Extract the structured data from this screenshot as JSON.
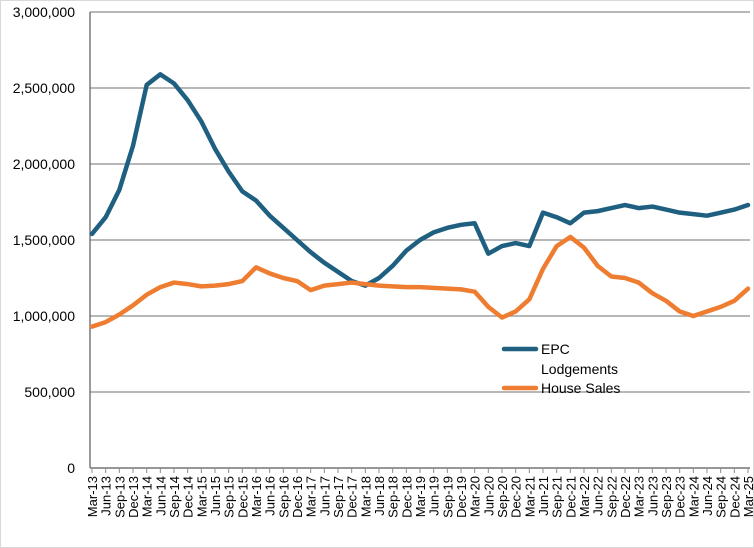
{
  "chart_data": {
    "type": "line",
    "title": "",
    "xlabel": "",
    "ylabel": "",
    "ylim": [
      0,
      3000000
    ],
    "y_ticks": [
      0,
      500000,
      1000000,
      1500000,
      2000000,
      2500000,
      3000000
    ],
    "y_tick_labels": [
      "0",
      "500,000",
      "1,000,000",
      "1,500,000",
      "2,000,000",
      "2,500,000",
      "3,000,000"
    ],
    "grid": true,
    "legend_position": "center-right",
    "x_labels": [
      "Mar-13",
      "Jun-13",
      "Sep-13",
      "Dec-13",
      "Mar-14",
      "Jun-14",
      "Sep-14",
      "Dec-14",
      "Mar-15",
      "Jun-15",
      "Sep-15",
      "Dec-15",
      "Mar-16",
      "Jun-16",
      "Sep-16",
      "Dec-16",
      "Mar-17",
      "Jun-17",
      "Sep-17",
      "Dec-17",
      "Mar-18",
      "Jun-18",
      "Sep-18",
      "Dec-18",
      "Mar-19",
      "Jun-19",
      "Sep-19",
      "Dec-19",
      "Mar-20",
      "Jun-20",
      "Sep-20",
      "Dec-20",
      "Mar-21",
      "Jun-21",
      "Sep-21",
      "Dec-21",
      "Mar-22",
      "Jun-22",
      "Sep-22",
      "Dec-22",
      "Mar-23",
      "Jun-23",
      "Sep-23",
      "Dec-23",
      "Mar-24",
      "Jun-24",
      "Sep-24",
      "Dec-24",
      "Mar-25"
    ],
    "series": [
      {
        "name": "EPC Lodgements",
        "legend_lines": [
          "EPC",
          "Lodgements"
        ],
        "color": "#1f5f80",
        "values": [
          1540000,
          1650000,
          1830000,
          2120000,
          2520000,
          2590000,
          2530000,
          2420000,
          2280000,
          2100000,
          1950000,
          1820000,
          1760000,
          1660000,
          1580000,
          1500000,
          1420000,
          1350000,
          1290000,
          1230000,
          1200000,
          1250000,
          1330000,
          1430000,
          1500000,
          1550000,
          1580000,
          1600000,
          1610000,
          1410000,
          1460000,
          1480000,
          1460000,
          1680000,
          1650000,
          1610000,
          1680000,
          1690000,
          1710000,
          1730000,
          1710000,
          1720000,
          1700000,
          1680000,
          1670000,
          1660000,
          1680000,
          1700000,
          1730000
        ]
      },
      {
        "name": "House Sales",
        "legend_lines": [
          "House Sales"
        ],
        "color": "#ee7d31",
        "values": [
          930000,
          960000,
          1010000,
          1070000,
          1140000,
          1190000,
          1220000,
          1210000,
          1195000,
          1200000,
          1210000,
          1230000,
          1320000,
          1280000,
          1250000,
          1230000,
          1170000,
          1200000,
          1210000,
          1220000,
          1210000,
          1200000,
          1195000,
          1190000,
          1190000,
          1185000,
          1180000,
          1175000,
          1160000,
          1060000,
          990000,
          1030000,
          1110000,
          1310000,
          1460000,
          1520000,
          1450000,
          1330000,
          1260000,
          1250000,
          1220000,
          1150000,
          1100000,
          1030000,
          1000000,
          1030000,
          1060000,
          1100000,
          1180000
        ]
      }
    ]
  }
}
